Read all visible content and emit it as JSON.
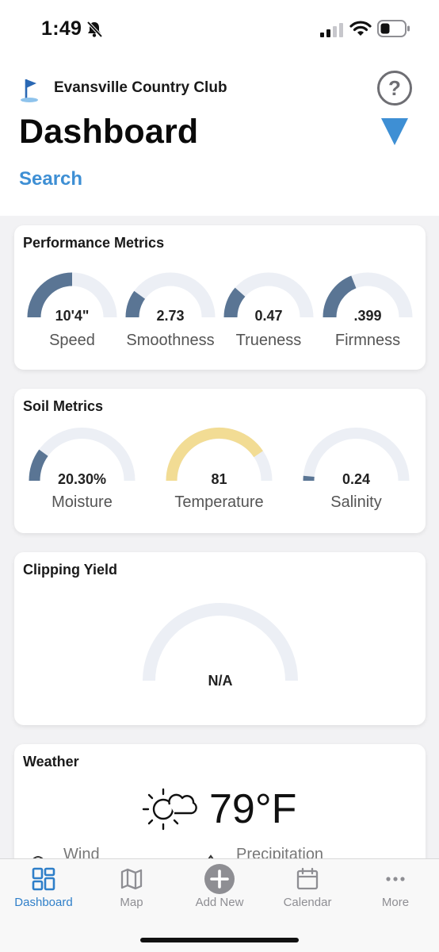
{
  "status_bar": {
    "time": "1:49",
    "icons": [
      "bell-slash-icon",
      "cellular-signal-icon",
      "wifi-icon",
      "battery-icon"
    ]
  },
  "header": {
    "club_name": "Evansville Country Club",
    "title": "Dashboard",
    "search_label": "Search",
    "icons": [
      "golf-flag-icon",
      "help-icon",
      "filter-triangle-icon"
    ]
  },
  "performance": {
    "title": "Performance Metrics",
    "gauges": [
      {
        "value": "10'4\"",
        "label": "Speed",
        "level": 0.5
      },
      {
        "value": "2.73",
        "label": "Smoothness",
        "level": 0.2
      },
      {
        "value": "0.47",
        "label": "Trueness",
        "level": 0.23
      },
      {
        "value": ".399",
        "label": "Firmness",
        "level": 0.38
      }
    ]
  },
  "soil": {
    "title": "Soil Metrics",
    "gauges": [
      {
        "value": "20.30%",
        "label": "Moisture",
        "level": 0.2
      },
      {
        "value": "81",
        "label": "Temperature",
        "level": 0.81
      },
      {
        "value": "0.24",
        "label": "Salinity",
        "level": 0.03
      }
    ]
  },
  "clipping": {
    "title": "Clipping Yield",
    "value": "N/A",
    "level": 0
  },
  "weather": {
    "title": "Weather",
    "temperature": "79°F",
    "wind_label": "Wind",
    "precip_label": "Precipitation",
    "icons": [
      "partly-sunny-icon",
      "wind-icon",
      "precipitation-icon"
    ]
  },
  "colors": {
    "gauge_fill": "#5a7594",
    "gauge_track": "#eceff5",
    "temperature_fill": "#f2dc94",
    "accent": "#3e8fd4"
  },
  "tabs": [
    {
      "label": "Dashboard",
      "active": true,
      "icon": "dashboard-grid-icon"
    },
    {
      "label": "Map",
      "active": false,
      "icon": "map-icon"
    },
    {
      "label": "Add New",
      "active": false,
      "icon": "add-circle-icon"
    },
    {
      "label": "Calendar",
      "active": false,
      "icon": "calendar-icon"
    },
    {
      "label": "More",
      "active": false,
      "icon": "more-dots-icon"
    }
  ]
}
